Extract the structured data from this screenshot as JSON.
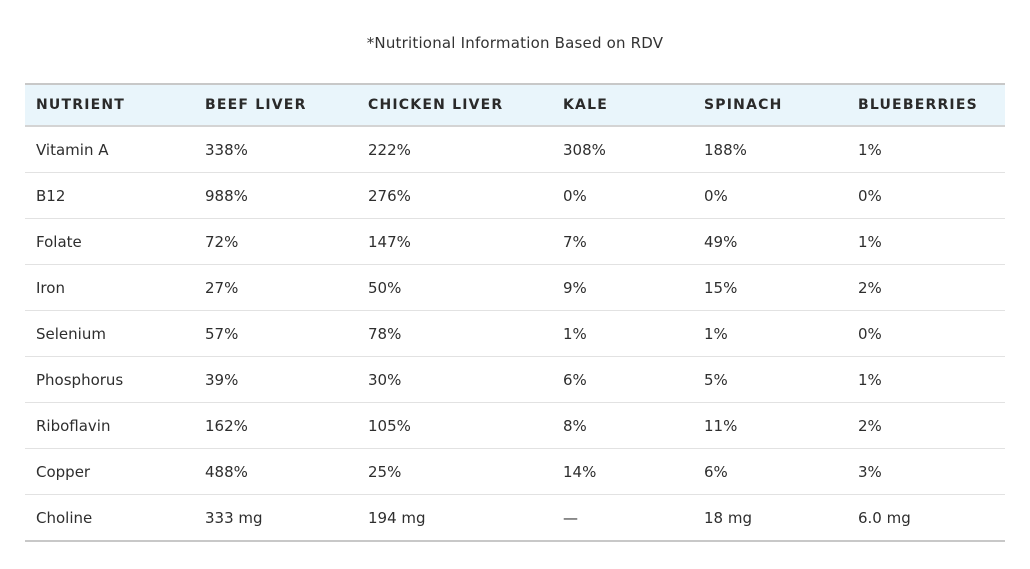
{
  "caption": "*Nutritional Information Based on RDV",
  "table": {
    "headers": [
      "NUTRIENT",
      "BEEF LIVER",
      "CHICKEN LIVER",
      "KALE",
      "SPINACH",
      "BLUEBERRIES"
    ],
    "rows": [
      [
        "Vitamin A",
        "338%",
        "222%",
        "308%",
        "188%",
        "1%"
      ],
      [
        "B12",
        "988%",
        "276%",
        "0%",
        "0%",
        "0%"
      ],
      [
        "Folate",
        "72%",
        "147%",
        "7%",
        "49%",
        "1%"
      ],
      [
        "Iron",
        "27%",
        "50%",
        "9%",
        "15%",
        "2%"
      ],
      [
        "Selenium",
        "57%",
        "78%",
        "1%",
        "1%",
        "0%"
      ],
      [
        "Phosphorus",
        "39%",
        "30%",
        "6%",
        "5%",
        "1%"
      ],
      [
        "Riboflavin",
        "162%",
        "105%",
        "8%",
        "11%",
        "2%"
      ],
      [
        "Copper",
        "488%",
        "25%",
        "14%",
        "6%",
        "3%"
      ],
      [
        "Choline",
        "333 mg",
        "194 mg",
        "—",
        "18 mg",
        "6.0 mg"
      ]
    ]
  },
  "colors": {
    "header_background": "#e9f5fb",
    "text": "#2e2e2e",
    "divider": "#e2e2e2"
  }
}
